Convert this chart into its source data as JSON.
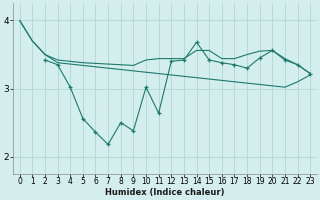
{
  "xlabel": "Humidex (Indice chaleur)",
  "bg_color": "#d4eeed",
  "grid_color": "#b0d8d5",
  "line_color": "#1a7a6e",
  "xlim": [
    -0.5,
    23.5
  ],
  "ylim": [
    1.75,
    4.25
  ],
  "yticks": [
    2,
    3,
    4
  ],
  "xticks": [
    0,
    1,
    2,
    3,
    4,
    5,
    6,
    7,
    8,
    9,
    10,
    11,
    12,
    13,
    14,
    15,
    16,
    17,
    18,
    19,
    20,
    21,
    22,
    23
  ],
  "series": [
    {
      "x": [
        0,
        1,
        2,
        3,
        4,
        5,
        6,
        7,
        8,
        9,
        10,
        11,
        12,
        13,
        14,
        15,
        16,
        17,
        18,
        19,
        20,
        21,
        22,
        23
      ],
      "y": [
        4.0,
        3.7,
        3.5,
        3.42,
        3.4,
        3.38,
        3.37,
        3.36,
        3.35,
        3.34,
        3.42,
        3.44,
        3.44,
        3.44,
        3.56,
        3.56,
        3.44,
        3.44,
        3.5,
        3.55,
        3.56,
        3.44,
        3.35,
        3.22
      ],
      "marker": false
    },
    {
      "x": [
        0,
        1,
        2,
        3,
        4,
        5,
        6,
        7,
        8,
        9,
        10,
        11,
        12,
        13,
        14,
        15,
        16,
        17,
        18,
        19,
        20,
        21,
        22,
        23
      ],
      "y": [
        4.0,
        3.7,
        3.5,
        3.38,
        3.36,
        3.34,
        3.32,
        3.3,
        3.28,
        3.26,
        3.24,
        3.22,
        3.2,
        3.18,
        3.16,
        3.14,
        3.12,
        3.1,
        3.08,
        3.06,
        3.04,
        3.02,
        3.1,
        3.2
      ],
      "marker": false
    },
    {
      "x": [
        2,
        3,
        4,
        5,
        6,
        7,
        8,
        9,
        10,
        11,
        12,
        13,
        14,
        15,
        16,
        17,
        18,
        19,
        20,
        21,
        22,
        23
      ],
      "y": [
        3.42,
        3.35,
        3.02,
        2.56,
        2.36,
        2.18,
        2.5,
        2.38,
        3.02,
        2.64,
        3.4,
        3.42,
        3.68,
        3.42,
        3.38,
        3.35,
        3.3,
        3.45,
        3.56,
        3.42,
        3.35,
        3.22
      ],
      "marker": true
    }
  ]
}
